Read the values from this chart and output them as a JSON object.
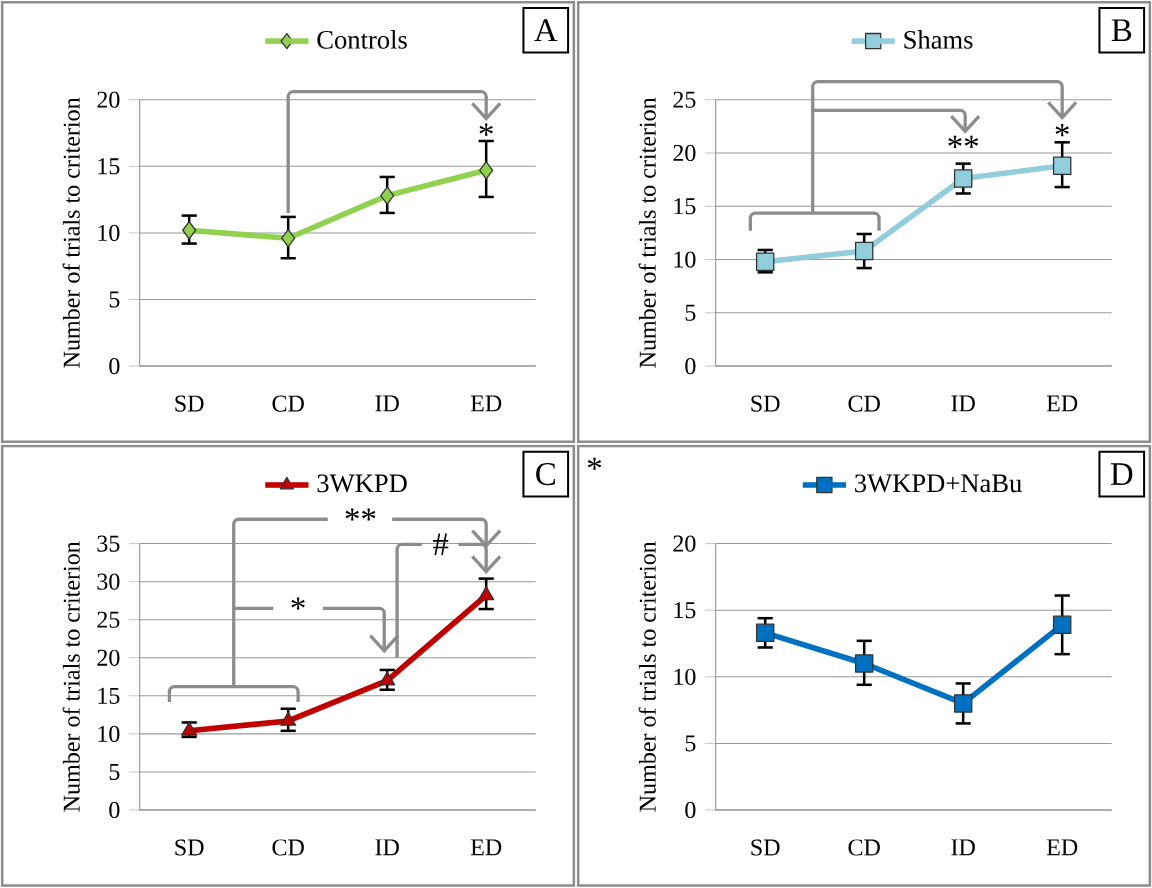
{
  "chart_data": [
    {
      "type": "line",
      "categories": [
        "SD",
        "CD",
        "ID",
        "ED"
      ],
      "ylabel": "Number of trials to criterion",
      "marker": "diamond",
      "ylim": [
        0,
        20
      ],
      "yticks": [
        0,
        5,
        10,
        15,
        20
      ],
      "grid": "y",
      "legend": "top",
      "annotations": [
        "A",
        "*"
      ],
      "series": [
        {
          "name": "Controls",
          "color": "#92d050",
          "values": [
            10.2,
            9.6,
            12.8,
            14.7
          ],
          "errors": [
            [
              9.2,
              11.3
            ],
            [
              8.1,
              11.2
            ],
            [
              11.5,
              14.2
            ],
            [
              12.7,
              16.9
            ]
          ]
        }
      ]
    },
    {
      "type": "line",
      "categories": [
        "SD",
        "CD",
        "ID",
        "ED"
      ],
      "ylabel": "Number of trials to criterion",
      "marker": "square",
      "ylim": [
        0,
        25
      ],
      "yticks": [
        0,
        5,
        10,
        15,
        20,
        25
      ],
      "grid": "y",
      "legend": "top",
      "annotations": [
        "B",
        "**",
        "*"
      ],
      "series": [
        {
          "name": "Shams",
          "color": "#92cddc",
          "values": [
            9.8,
            10.8,
            17.6,
            18.8
          ],
          "errors": [
            [
              8.8,
              10.9
            ],
            [
              9.2,
              12.4
            ],
            [
              16.2,
              19.0
            ],
            [
              16.8,
              21.0
            ]
          ]
        }
      ]
    },
    {
      "type": "line",
      "categories": [
        "SD",
        "CD",
        "ID",
        "ED"
      ],
      "ylabel": "Number of trials to criterion",
      "marker": "triangle",
      "ylim": [
        0,
        35
      ],
      "yticks": [
        0,
        5,
        10,
        15,
        20,
        25,
        30,
        35
      ],
      "grid": "y",
      "legend": "top",
      "annotations": [
        "C",
        "**",
        "*",
        "#"
      ],
      "series": [
        {
          "name": "3WKPD",
          "color": "#c00000",
          "values": [
            10.4,
            11.7,
            17.0,
            28.2
          ],
          "errors": [
            [
              9.6,
              11.5
            ],
            [
              10.4,
              13.3
            ],
            [
              15.8,
              18.4
            ],
            [
              26.4,
              30.4
            ]
          ]
        }
      ]
    },
    {
      "type": "line",
      "categories": [
        "SD",
        "CD",
        "ID",
        "ED"
      ],
      "ylabel": "Number of trials to criterion",
      "marker": "square",
      "ylim": [
        0,
        20
      ],
      "yticks": [
        0,
        5,
        10,
        15,
        20
      ],
      "grid": "y",
      "legend": "top",
      "annotations": [
        "D",
        "*"
      ],
      "series": [
        {
          "name": "3WKPD+NaBu",
          "color": "#0070c0",
          "values": [
            13.3,
            11.0,
            8.0,
            13.9
          ],
          "errors": [
            [
              12.2,
              14.4
            ],
            [
              9.4,
              12.7
            ],
            [
              6.5,
              9.5
            ],
            [
              11.7,
              16.1
            ]
          ]
        }
      ]
    }
  ]
}
